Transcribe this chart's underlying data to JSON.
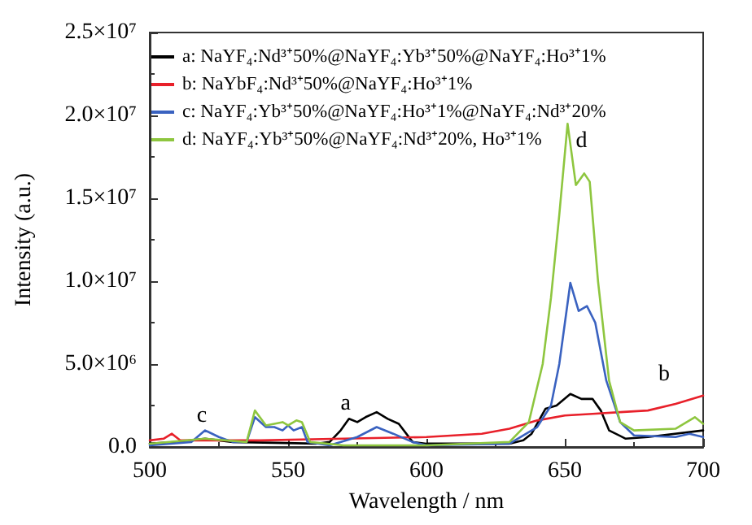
{
  "chart_data": {
    "type": "line",
    "xlabel": "Wavelength / nm",
    "ylabel": "Intensity (a.u.)",
    "xlim": [
      500,
      700
    ],
    "xticks": [
      500,
      550,
      600,
      650,
      700
    ],
    "ylim": [
      0,
      25000000
    ],
    "yticks": [
      {
        "value": 0,
        "label": "0.0"
      },
      {
        "value": 5000000,
        "label": "5.0×10⁶"
      },
      {
        "value": 10000000,
        "label": "1.0×10⁷"
      },
      {
        "value": 15000000,
        "label": "1.5×10⁷"
      },
      {
        "value": 20000000,
        "label": "2.0×10⁷"
      },
      {
        "value": 25000000,
        "label": "2.5×10⁷"
      }
    ],
    "grid": false,
    "legend": "top left",
    "marker": "none",
    "line_style": "solid",
    "annotations": [
      "a",
      "b",
      "c",
      "d"
    ],
    "series": [
      {
        "name": "a: NaYF₄:Nd³⁺50%@NaYF₄:Yb³⁺50%@NaYF₄:Ho³⁺1%",
        "color": "#000000",
        "x": [
          500,
          510,
          520,
          525,
          530,
          560,
          565,
          569,
          572,
          575,
          578,
          582,
          586,
          590,
          595,
          600,
          630,
          635,
          638,
          643,
          647,
          652,
          656,
          660,
          663,
          666,
          672,
          680,
          700
        ],
        "values": [
          200000,
          300000,
          500000,
          400000,
          300000,
          200000,
          300000,
          1000000,
          1700000,
          1500000,
          1800000,
          2100000,
          1700000,
          1400000,
          300000,
          200000,
          200000,
          400000,
          800000,
          2300000,
          2500000,
          3200000,
          2900000,
          2900000,
          2200000,
          1000000,
          500000,
          600000,
          1000000
        ]
      },
      {
        "name": "b: NaYbF₄:Nd³⁺50%@NaYF₄:Ho³⁺1%",
        "color": "#e8202a",
        "x": [
          500,
          505,
          508,
          511,
          520,
          540,
          570,
          600,
          620,
          630,
          640,
          650,
          660,
          670,
          680,
          690,
          700
        ],
        "values": [
          400000,
          500000,
          800000,
          400000,
          400000,
          400000,
          500000,
          600000,
          800000,
          1100000,
          1600000,
          1900000,
          2000000,
          2100000,
          2200000,
          2600000,
          3100000
        ]
      },
      {
        "name": "c: NaYF₄:Yb³⁺50%@NaYF₄:Ho³⁺1%@NaYF₄:Nd³⁺20%",
        "color": "#3a62c0",
        "x": [
          500,
          515,
          520,
          525,
          530,
          535,
          538,
          542,
          545,
          548,
          550,
          552,
          555,
          557,
          565,
          575,
          582,
          588,
          595,
          600,
          630,
          640,
          645,
          648,
          652,
          655,
          658,
          661,
          665,
          670,
          675,
          690,
          695,
          700
        ],
        "values": [
          100000,
          300000,
          1000000,
          600000,
          300000,
          300000,
          1800000,
          1200000,
          1200000,
          1000000,
          1300000,
          1000000,
          1200000,
          300000,
          100000,
          600000,
          1200000,
          800000,
          300000,
          100000,
          200000,
          1200000,
          2500000,
          5000000,
          9900000,
          8200000,
          8500000,
          7500000,
          4000000,
          1500000,
          700000,
          600000,
          800000,
          600000
        ]
      },
      {
        "name": "d: NaYF₄:Yb³⁺50%@NaYF₄:Nd³⁺20%, Ho³⁺1%",
        "color": "#8ec63f",
        "x": [
          500,
          520,
          535,
          538,
          542,
          548,
          550,
          553,
          555,
          558,
          570,
          600,
          630,
          637,
          642,
          645,
          648,
          651,
          654,
          657,
          659,
          662,
          666,
          670,
          675,
          690,
          697,
          700
        ],
        "values": [
          200000,
          500000,
          300000,
          2200000,
          1300000,
          1500000,
          1300000,
          1600000,
          1500000,
          300000,
          100000,
          100000,
          300000,
          1500000,
          5000000,
          9000000,
          14000000,
          19500000,
          15800000,
          16500000,
          16000000,
          10000000,
          4000000,
          1500000,
          1000000,
          1100000,
          1800000,
          1400000
        ]
      }
    ]
  }
}
